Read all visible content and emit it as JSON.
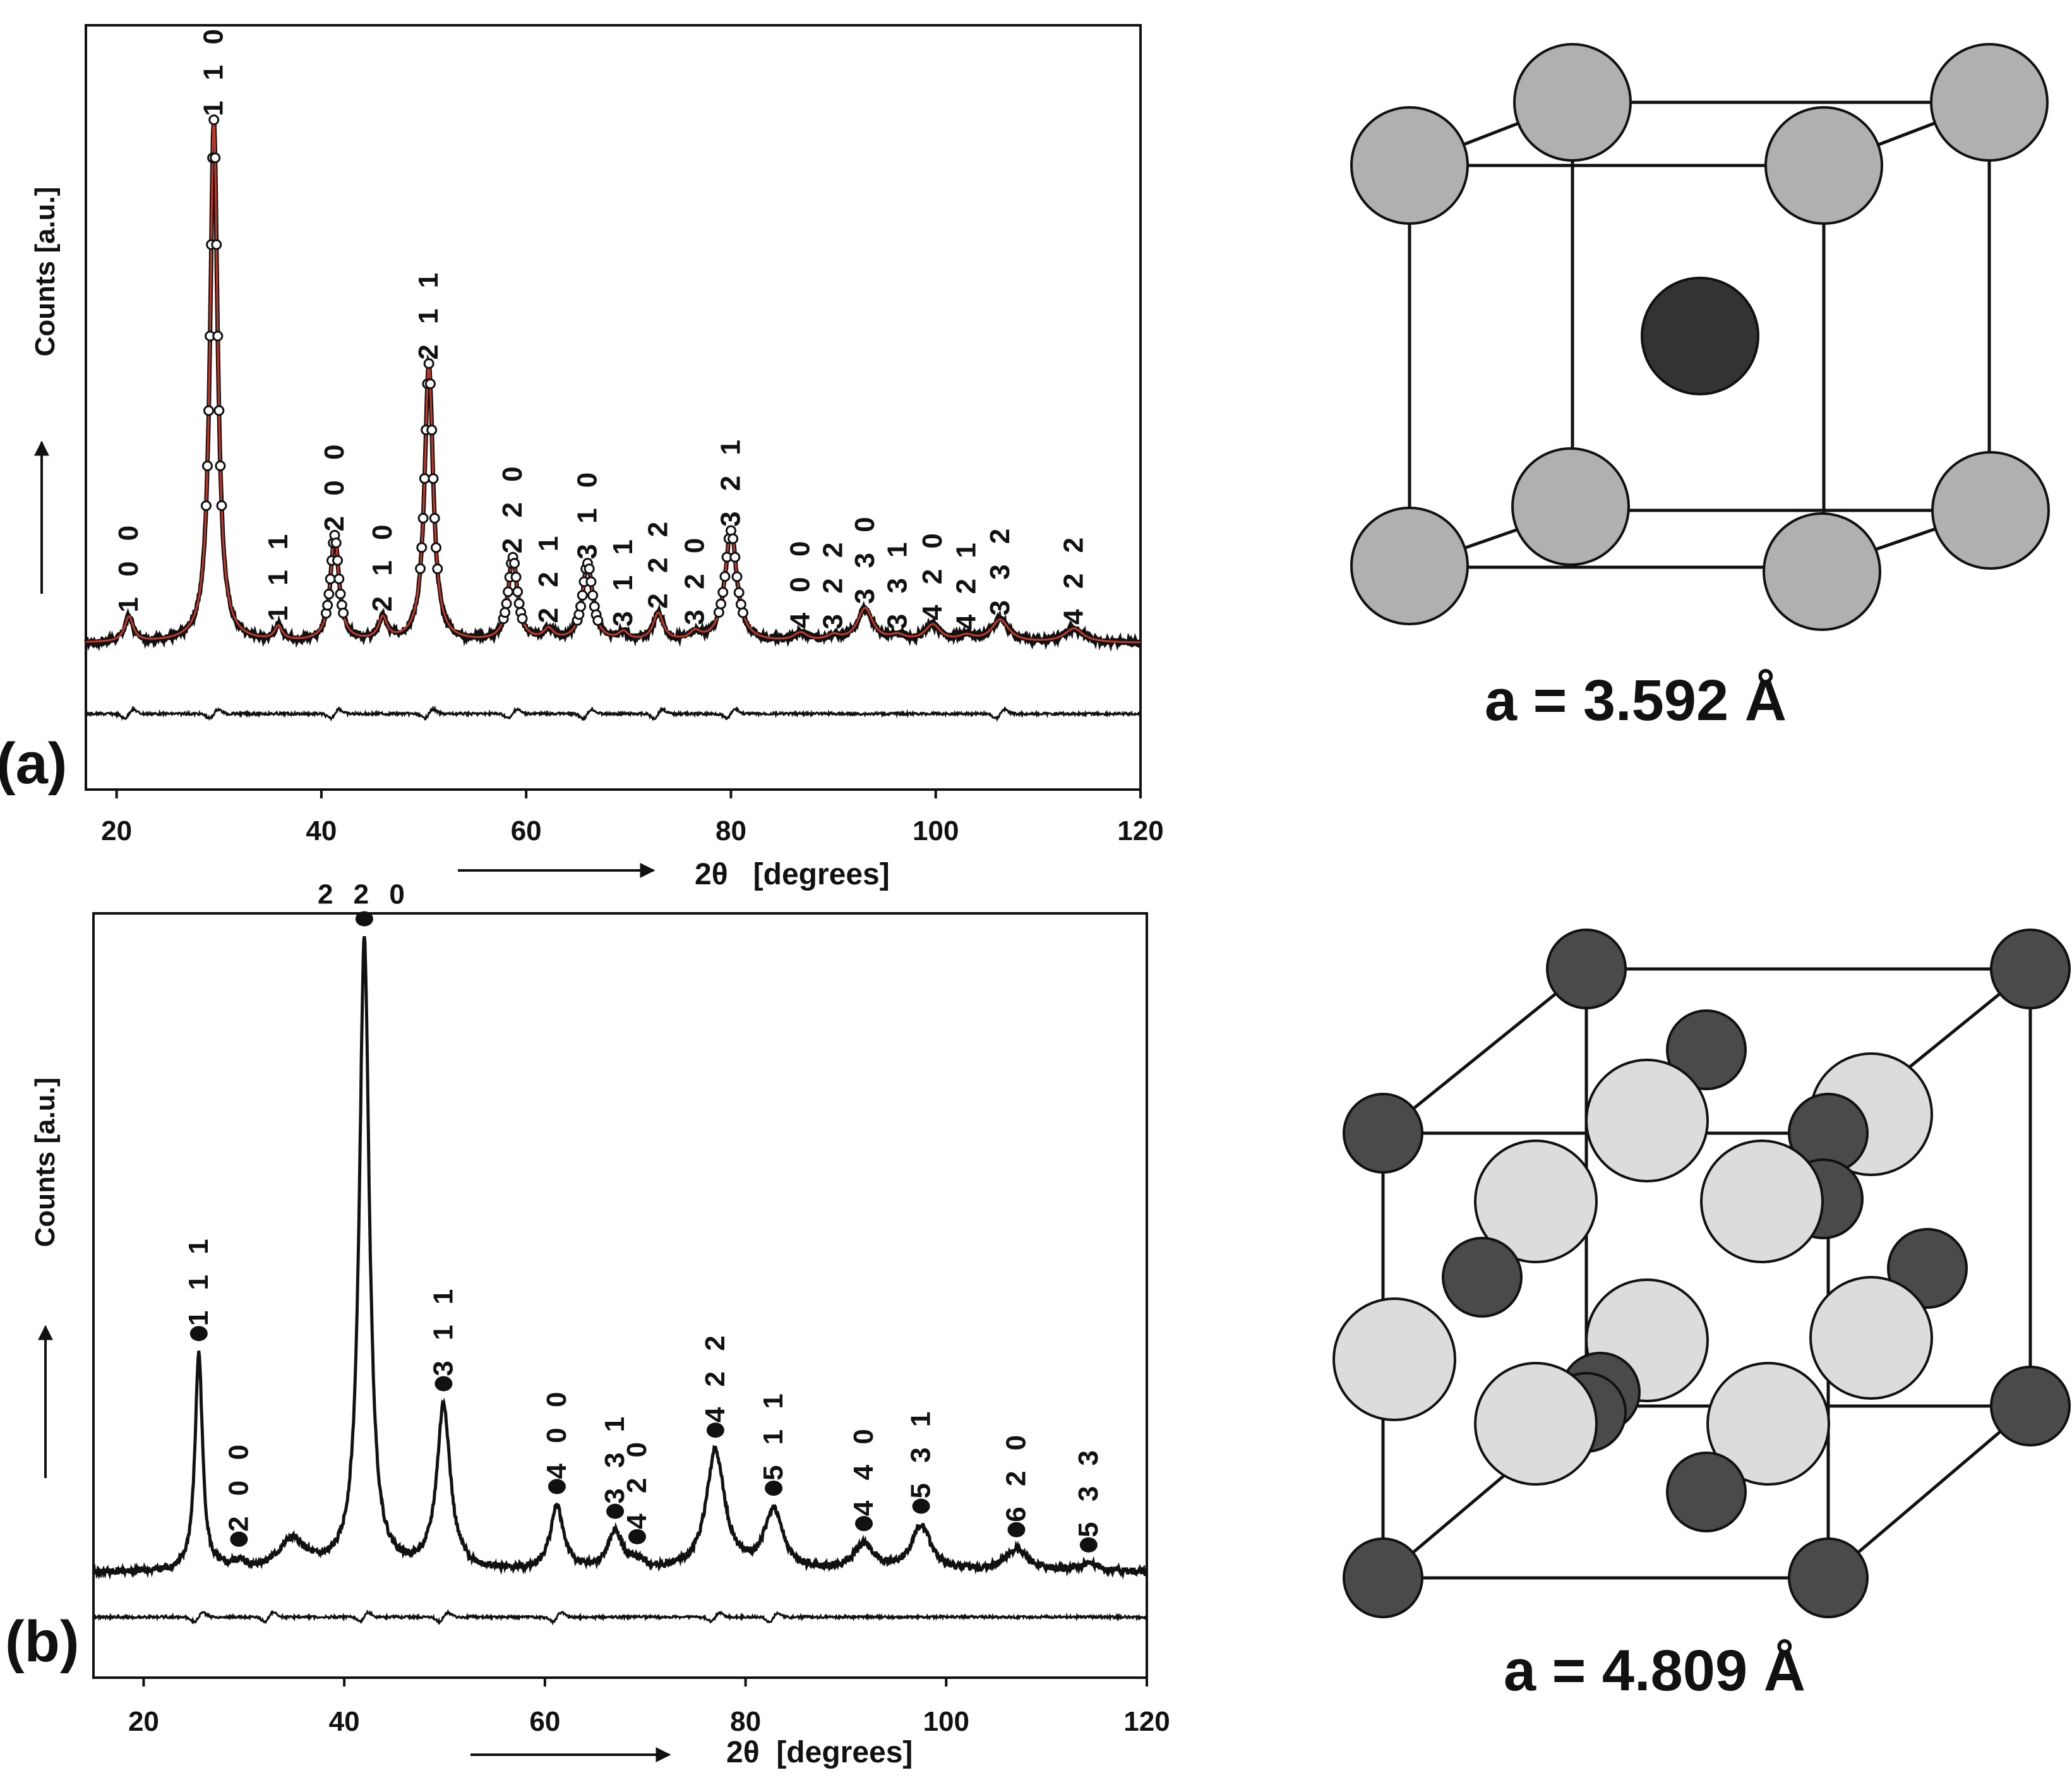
{
  "chart_data": [
    {
      "type": "line",
      "panel_label": "(a)",
      "xlabel": "2θ   [degrees]",
      "ylabel": "Counts [a.u.]",
      "xlim": [
        17,
        120
      ],
      "ylim": [
        0,
        100
      ],
      "xticks": [
        "20",
        "40",
        "60",
        "80",
        "100",
        "120"
      ],
      "background_level": 9,
      "peaks": [
        {
          "hkl": "1 0 0",
          "x": 21.2,
          "height": 4.5,
          "width": 0.5
        },
        {
          "hkl": "1 1 0",
          "x": 29.5,
          "height": 94,
          "width": 0.45
        },
        {
          "hkl": "1 1 1",
          "x": 35.8,
          "height": 2.5,
          "width": 0.45
        },
        {
          "hkl": "2 0 0",
          "x": 41.3,
          "height": 19,
          "width": 0.5
        },
        {
          "hkl": "2 1 0",
          "x": 46.0,
          "height": 4.0,
          "width": 0.5
        },
        {
          "hkl": "2 1 1",
          "x": 50.5,
          "height": 50,
          "width": 0.5
        },
        {
          "hkl": "2 2 0",
          "x": 58.7,
          "height": 15,
          "width": 0.55
        },
        {
          "hkl": "2 2 1",
          "x": 62.2,
          "height": 2.0,
          "width": 0.6
        },
        {
          "hkl": "3 1 0",
          "x": 66.0,
          "height": 14,
          "width": 0.6
        },
        {
          "hkl": "3 1 1",
          "x": 69.5,
          "height": 1.5,
          "width": 0.6
        },
        {
          "hkl": "2 2 2",
          "x": 72.9,
          "height": 5.0,
          "width": 0.6
        },
        {
          "hkl": "3 2 0",
          "x": 76.5,
          "height": 1.5,
          "width": 0.6
        },
        {
          "hkl": "3 2 1",
          "x": 80.0,
          "height": 20,
          "width": 0.7
        },
        {
          "hkl": "4 0 0",
          "x": 86.8,
          "height": 1.5,
          "width": 0.8
        },
        {
          "hkl": "3 2 2",
          "x": 90.0,
          "height": 1.0,
          "width": 0.8
        },
        {
          "hkl": "3 3 0",
          "x": 93.1,
          "height": 6.0,
          "width": 0.9
        },
        {
          "hkl": "3 3 1",
          "x": 96.3,
          "height": 1.0,
          "width": 0.9
        },
        {
          "hkl": "4 2 0",
          "x": 99.7,
          "height": 3.0,
          "width": 0.9
        },
        {
          "hkl": "4 2 1",
          "x": 103.0,
          "height": 1.0,
          "width": 0.9
        },
        {
          "hkl": "3 3 2",
          "x": 106.3,
          "height": 4.0,
          "width": 1.0
        },
        {
          "hkl": "4 2 2",
          "x": 113.5,
          "height": 2.5,
          "width": 1.1
        }
      ],
      "difference_features_x": [
        21.2,
        29.5,
        41.3,
        50.5,
        58.7,
        66.0,
        72.9,
        80.0,
        106.3
      ]
    },
    {
      "type": "line",
      "panel_label": "(b)",
      "xlabel": "2θ  [degrees]",
      "ylabel": "Counts [a.u.]",
      "xlim": [
        15,
        120
      ],
      "ylim": [
        0,
        100
      ],
      "xticks": [
        "20",
        "40",
        "60",
        "80",
        "100",
        "120"
      ],
      "background_level": 8,
      "peaks": [
        {
          "hkl": "1 1 1",
          "x": 25.5,
          "height": 29,
          "width": 0.45
        },
        {
          "hkl": "2 0 0",
          "x": 29.5,
          "height": 1.0,
          "width": 0.8
        },
        {
          "hkl": "",
          "x": 34.8,
          "height": 4.0,
          "width": 1.6
        },
        {
          "hkl": "2 2 0",
          "x": 42.0,
          "height": 84,
          "width": 0.6
        },
        {
          "hkl": "3 1 1",
          "x": 49.9,
          "height": 22,
          "width": 0.8
        },
        {
          "hkl": "4 0 0",
          "x": 61.2,
          "height": 8.5,
          "width": 0.8
        },
        {
          "hkl": "3 3 1",
          "x": 67.0,
          "height": 5.0,
          "width": 0.9
        },
        {
          "hkl": "4 2 0",
          "x": 69.2,
          "height": 1.0,
          "width": 0.9
        },
        {
          "hkl": "4 2 2",
          "x": 77.0,
          "height": 16,
          "width": 1.1
        },
        {
          "hkl": "5 1 1",
          "x": 82.8,
          "height": 8.0,
          "width": 1.1
        },
        {
          "hkl": "4 4 0",
          "x": 91.8,
          "height": 3.5,
          "width": 1.2
        },
        {
          "hkl": "5 3 1",
          "x": 97.5,
          "height": 6.0,
          "width": 1.2
        },
        {
          "hkl": "6 2 0",
          "x": 107.0,
          "height": 3.0,
          "width": 1.4
        },
        {
          "hkl": "5 3 3",
          "x": 114.2,
          "height": 1.0,
          "width": 1.5
        }
      ],
      "difference_features_x": [
        25.5,
        32.5,
        42.0,
        49.9,
        61.2,
        77.0,
        82.8
      ]
    }
  ],
  "structures": {
    "a": {
      "lattice_label": "a = 3.592 Å",
      "type": "body-centered-cubic",
      "corner_color": "#b0b0b0",
      "center_color": "#333333"
    },
    "b": {
      "lattice_label": "a = 4.809 Å",
      "type": "rock-salt",
      "small_atom_color": "#4a4a4a",
      "large_atom_color": "#dcdcdc"
    }
  }
}
